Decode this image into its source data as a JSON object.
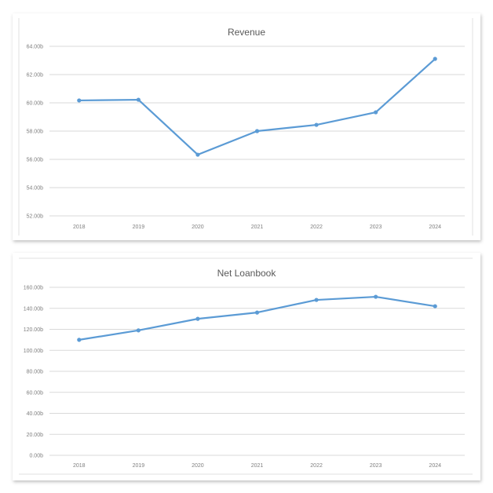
{
  "chart_data": [
    {
      "type": "line",
      "title": "Revenue",
      "categories": [
        "2018",
        "2019",
        "2020",
        "2021",
        "2022",
        "2023",
        "2024"
      ],
      "values": [
        60.17,
        60.22,
        56.33,
        58.0,
        58.44,
        59.33,
        63.11
      ],
      "ylim": [
        52,
        64
      ],
      "yticks": [
        "52.00b",
        "54.00b",
        "56.00b",
        "58.00b",
        "60.00b",
        "62.00b",
        "64.00b"
      ],
      "ytick_values": [
        52,
        54,
        56,
        58,
        60,
        62,
        64
      ],
      "grid": true,
      "color": "#5b9bd5"
    },
    {
      "type": "line",
      "title": "Net Loanbook",
      "categories": [
        "2018",
        "2019",
        "2020",
        "2021",
        "2022",
        "2023",
        "2024"
      ],
      "values": [
        110,
        119,
        130,
        136,
        148,
        151,
        142
      ],
      "ylim": [
        0,
        160
      ],
      "yticks": [
        "0.00b",
        "20.00b",
        "40.00b",
        "60.00b",
        "80.00b",
        "100.00b",
        "120.00b",
        "140.00b",
        "160.00b"
      ],
      "ytick_values": [
        0,
        20,
        40,
        60,
        80,
        100,
        120,
        140,
        160
      ],
      "grid": true,
      "color": "#5b9bd5"
    }
  ]
}
